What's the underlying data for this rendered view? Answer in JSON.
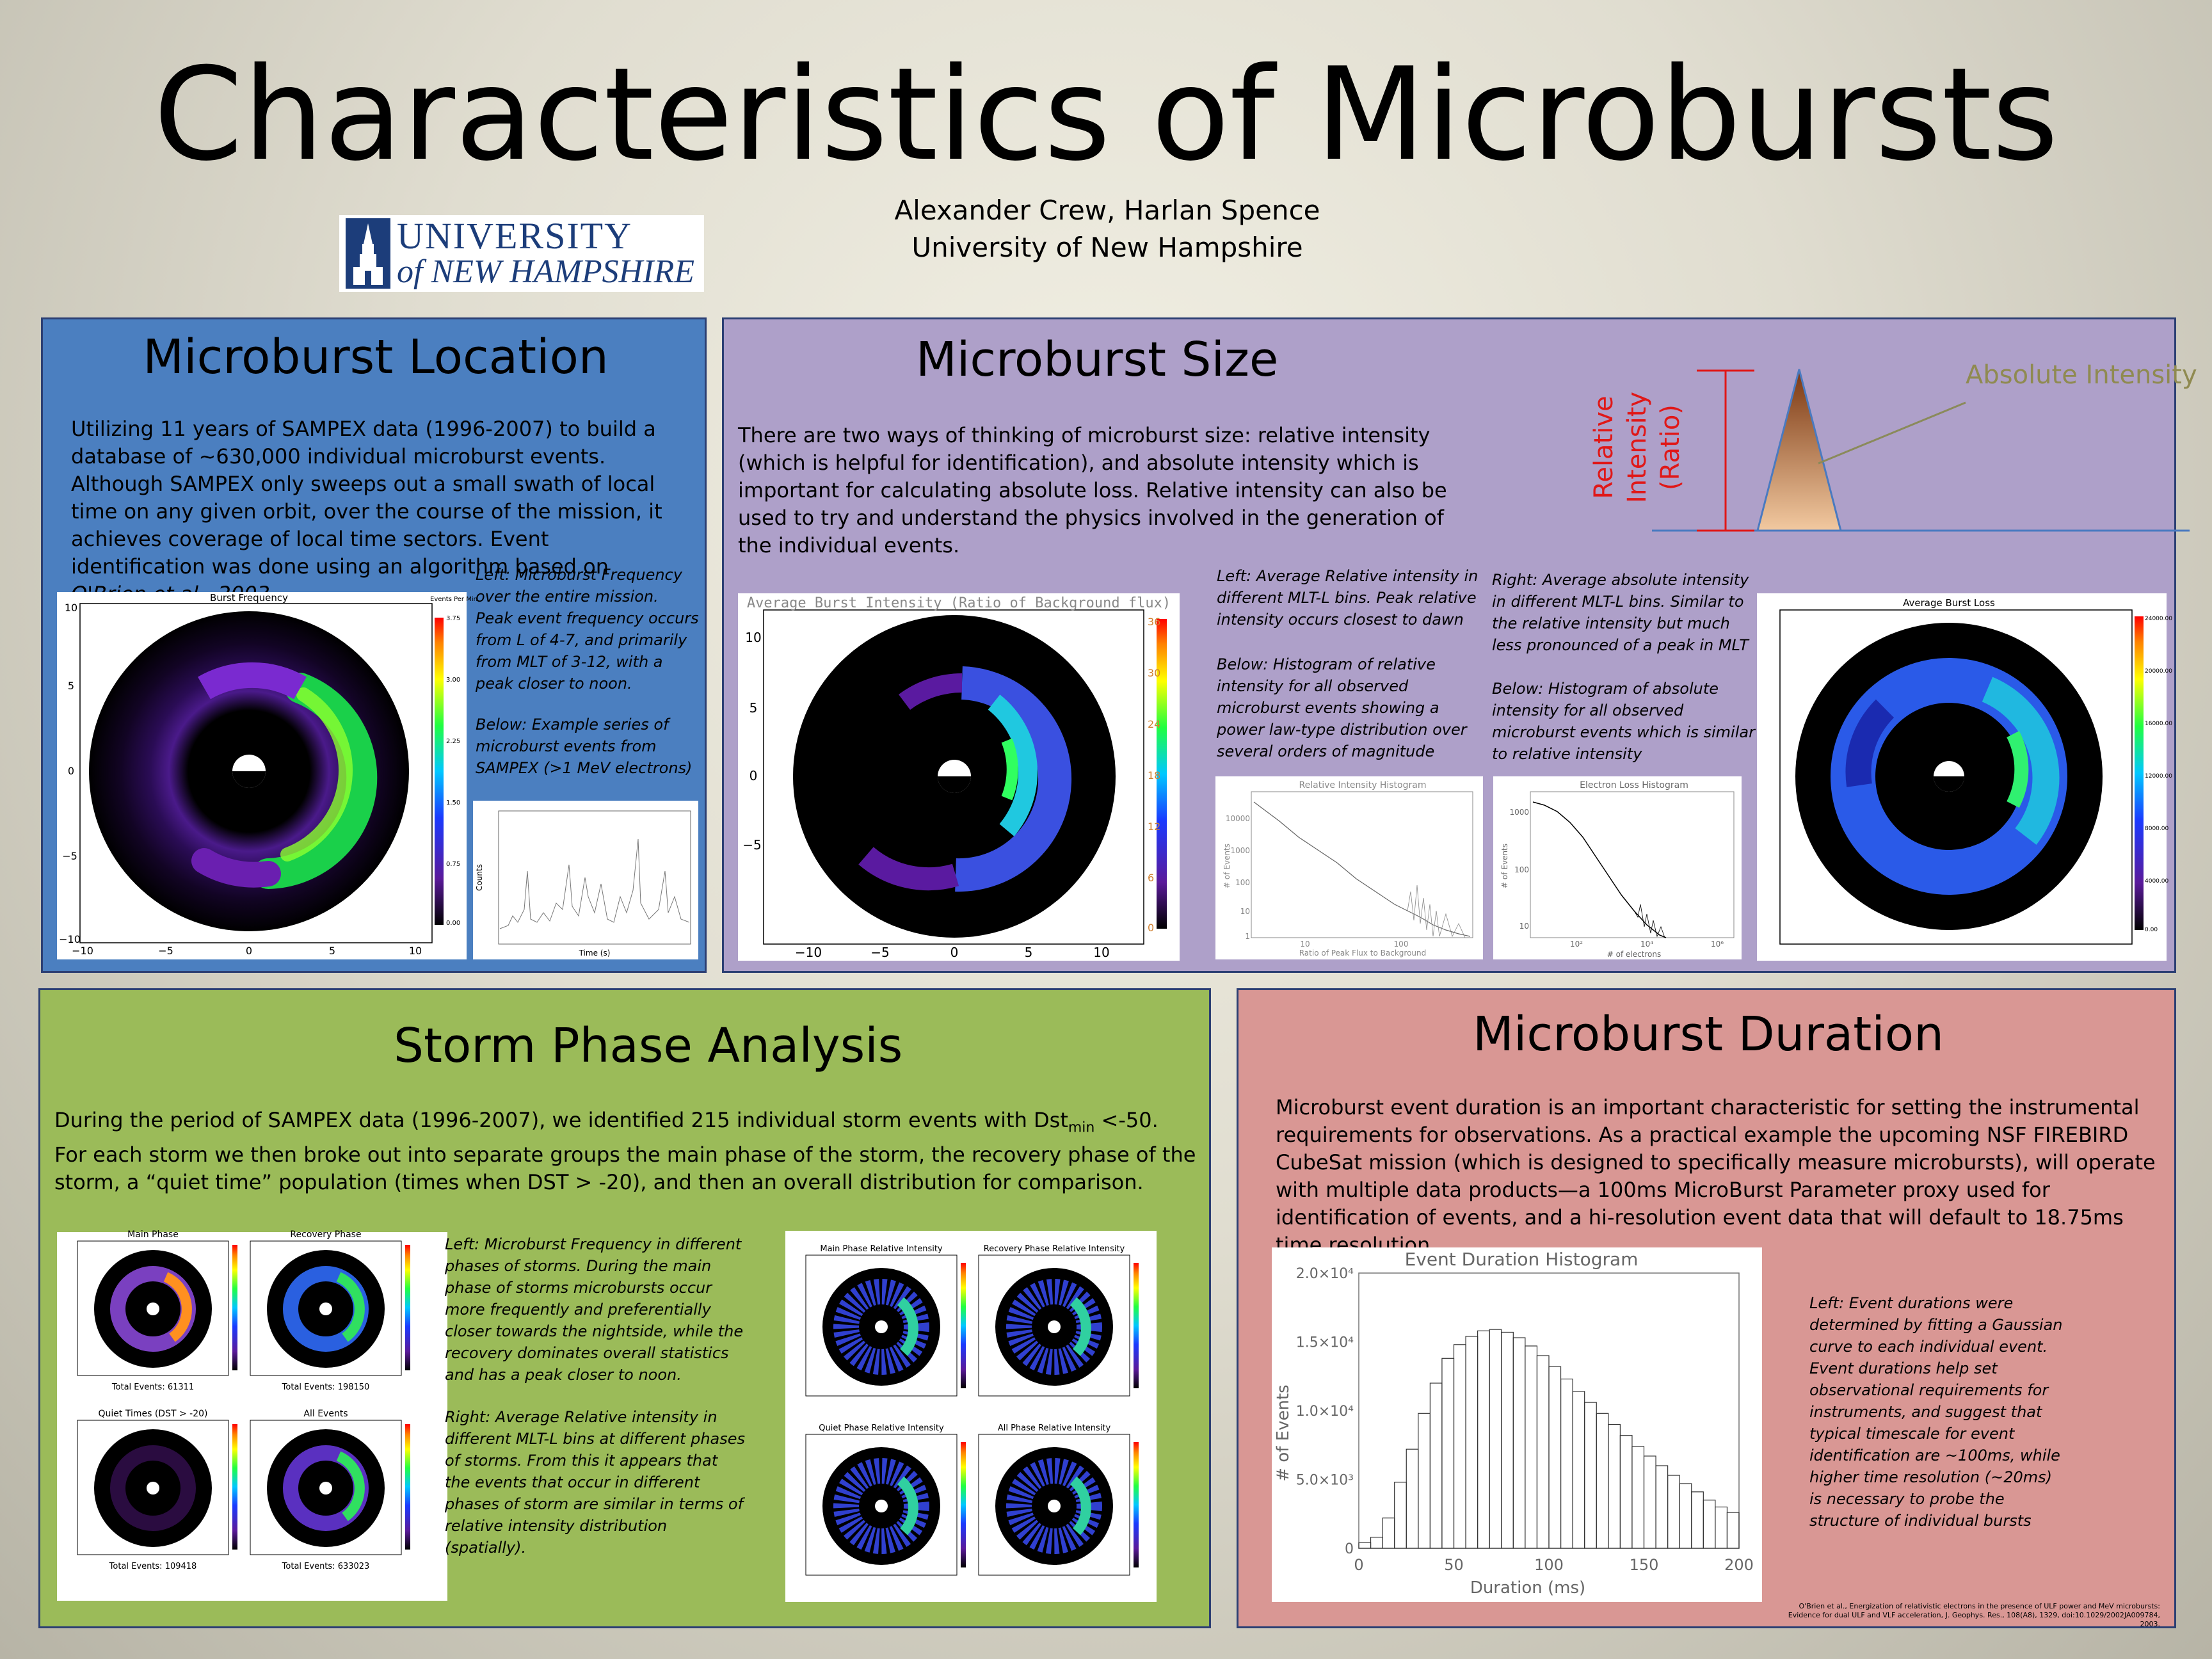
{
  "title": "Characteristics of Microbursts",
  "authors": {
    "line1": "Alexander Crew, Harlan Spence",
    "line2": "University of New Hampshire"
  },
  "logo": {
    "line1": "UNIVERSITY",
    "line2": "of NEW HAMPSHIRE"
  },
  "location": {
    "title": "Microburst Location",
    "text": "Utilizing 11 years of SAMPEX data (1996-2007) to build a database of ~630,000 individual microburst events. Although SAMPEX only sweeps out a small swath of local time on any given orbit, over the course of the mission, it achieves coverage of local time sectors. Event identification was done using an algorithm based on",
    "text_ref": "O'Brien et al., 2003.",
    "caption1": "Left: Microburst Frequency over the entire mission. Peak event frequency occurs from L of 4-7, and primarily from MLT of 3-12, with a peak closer to noon.",
    "caption2": "Below: Example series of microburst events from SAMPEX (>1 MeV electrons)",
    "plot_title": "Burst Frequency",
    "colorbar_label": "Events Per Min",
    "colorbar_ticks": [
      "3.75",
      "3.00",
      "2.25",
      "1.50",
      "0.75",
      "0.00"
    ],
    "series_xlabel": "Time (s)",
    "series_ylabel": "Counts"
  },
  "size": {
    "title": "Microburst Size",
    "text": "There are two ways of thinking of microburst size: relative intensity (which is helpful for identification), and absolute intensity which is important for calculating absolute loss. Relative intensity can also be used to try and understand the physics involved in the generation of the individual events.",
    "rel_label_1": "Relative",
    "rel_label_2": "Intensity",
    "rel_label_3": "(Ratio)",
    "abs_label": "Absolute Intensity",
    "caption_left_1": "Left: Average Relative intensity in different MLT-L bins. Peak relative intensity occurs closest to dawn",
    "caption_left_2": "Below: Histogram of relative intensity for all observed microburst events showing a power law-type distribution over several orders of magnitude",
    "caption_right_1": "Right: Average absolute intensity in different MLT-L bins. Similar to the relative intensity but much less pronounced of a peak in MLT",
    "caption_right_2": "Below: Histogram of absolute intensity for all observed microburst events which is similar to relative intensity",
    "rel_map_title": "Average Burst Intensity (Ratio of Background flux)",
    "rel_map_ticks": [
      "36",
      "30",
      "24",
      "18",
      "12",
      "6",
      "0"
    ],
    "rel_hist_title": "Relative Intensity Histogram",
    "rel_hist_xlabel": "Ratio of Peak Flux to Background",
    "rel_hist_ylabel": "# of Events",
    "loss_hist_title": "Electron Loss Histogram",
    "loss_hist_xlabel": "# of electrons",
    "loss_hist_ylabel": "# of Events",
    "abs_map_title": "Average Burst Loss",
    "abs_map_ticks": [
      "24000.00",
      "20000.00",
      "16000.00",
      "12000.00",
      "8000.00",
      "4000.00",
      "0.00"
    ]
  },
  "storm": {
    "title": "Storm Phase Analysis",
    "text1_a": "During the period of SAMPEX data (1996-2007), we identified 215 individual storm events with Dst",
    "text1_sub": "min",
    "text1_b": " <-50.",
    "text2": "For each storm we then broke out into separate groups the main phase of the storm, the recovery phase of the storm, a “quiet time” population (times when DST > -20), and then an overall distribution for comparison.",
    "caption1": "Left: Microburst Frequency in different phases of storms. During the main phase of storms microbursts occur more frequently and preferentially closer towards the nightside, while the recovery dominates overall statistics and has a peak closer to noon.",
    "caption2": "Right: Average Relative intensity in different MLT-L bins at different phases of storms. From this it appears that the events that occur in different phases of storm are similar in terms of relative intensity distribution (spatially).",
    "freq_panels": [
      {
        "title": "Main Phase",
        "total": "Total Events: 61311"
      },
      {
        "title": "Recovery Phase",
        "total": "Total Events: 198150"
      },
      {
        "title": "Quiet Times (DST > -20)",
        "total": "Total Events: 109418"
      },
      {
        "title": "All Events",
        "total": "Total Events: 633023"
      }
    ],
    "rel_panels": [
      {
        "title": "Main Phase Relative Intensity"
      },
      {
        "title": "Recovery Phase Relative Intensity"
      },
      {
        "title": "Quiet Phase Relative Intensity"
      },
      {
        "title": "All Phase Relative Intensity"
      }
    ]
  },
  "duration": {
    "title": "Microburst Duration",
    "text": "Microburst event duration is an important characteristic for setting the instrumental requirements for observations. As a practical example the upcoming NSF FIREBIRD CubeSat mission (which is designed to specifically measure microbursts), will operate with multiple data products—a 100ms MicroBurst Parameter proxy used for identification of events, and a hi-resolution event data that will default to 18.75ms time resolution.",
    "caption": "Left:  Event durations were determined by fitting a Gaussian curve to each individual event. Event durations help set observational requirements for instruments, and suggest that typical timescale for event identification are ~100ms, while higher time resolution (~20ms) is necessary to probe the structure of individual bursts",
    "reference": "O'Brien et al., Energization of relativistic electrons in the presence of ULF power and MeV microbursts: Evidence for dual ULF and VLF acceleration, J. Geophys. Res., 108(A8), 1329, doi:10.1029/2002JA009784, 2003."
  },
  "chart_data": [
    {
      "type": "bar",
      "title": "Event Duration Histogram",
      "xlabel": "Duration (ms)",
      "ylabel": "# of Events",
      "xlim": [
        0,
        200
      ],
      "ylim": [
        0,
        20000
      ],
      "x_ticks": [
        "0",
        "50",
        "100",
        "150",
        "200"
      ],
      "y_ticks": [
        "0",
        "5.0×10³",
        "1.0×10⁴",
        "1.5×10⁴",
        "2.0×10⁴"
      ],
      "x": [
        0,
        6.25,
        12.5,
        18.75,
        25,
        31.25,
        37.5,
        43.75,
        50,
        56.25,
        62.5,
        68.75,
        75,
        81.25,
        87.5,
        93.75,
        100,
        106.25,
        112.5,
        118.75,
        125,
        131.25,
        137.5,
        143.75,
        150,
        156.25,
        162.5,
        168.75,
        175,
        181.25,
        187.5,
        193.75
      ],
      "values": [
        400,
        800,
        2200,
        4800,
        7200,
        9800,
        12000,
        13800,
        14800,
        15400,
        15800,
        15900,
        15700,
        15300,
        14700,
        14000,
        13200,
        12300,
        11400,
        10600,
        9800,
        9000,
        8200,
        7400,
        6700,
        6000,
        5300,
        4700,
        4100,
        3500,
        3000,
        2600
      ]
    },
    {
      "type": "line",
      "title": "Relative Intensity Histogram",
      "xlabel": "Ratio of Peak Flux to Background",
      "ylabel": "# of Events",
      "log_x": true,
      "log_y": true,
      "x_ticks": [
        "10",
        "100"
      ],
      "y_ticks": [
        "10000",
        "1000",
        "100",
        "10",
        "1"
      ]
    },
    {
      "type": "line",
      "title": "Electron Loss Histogram",
      "xlabel": "# of electrons",
      "ylabel": "# of Events",
      "log_x": true,
      "log_y": true,
      "x_ticks": [
        "10²",
        "10⁴",
        "10⁶"
      ],
      "y_ticks": [
        "1000",
        "100",
        "10"
      ]
    }
  ]
}
